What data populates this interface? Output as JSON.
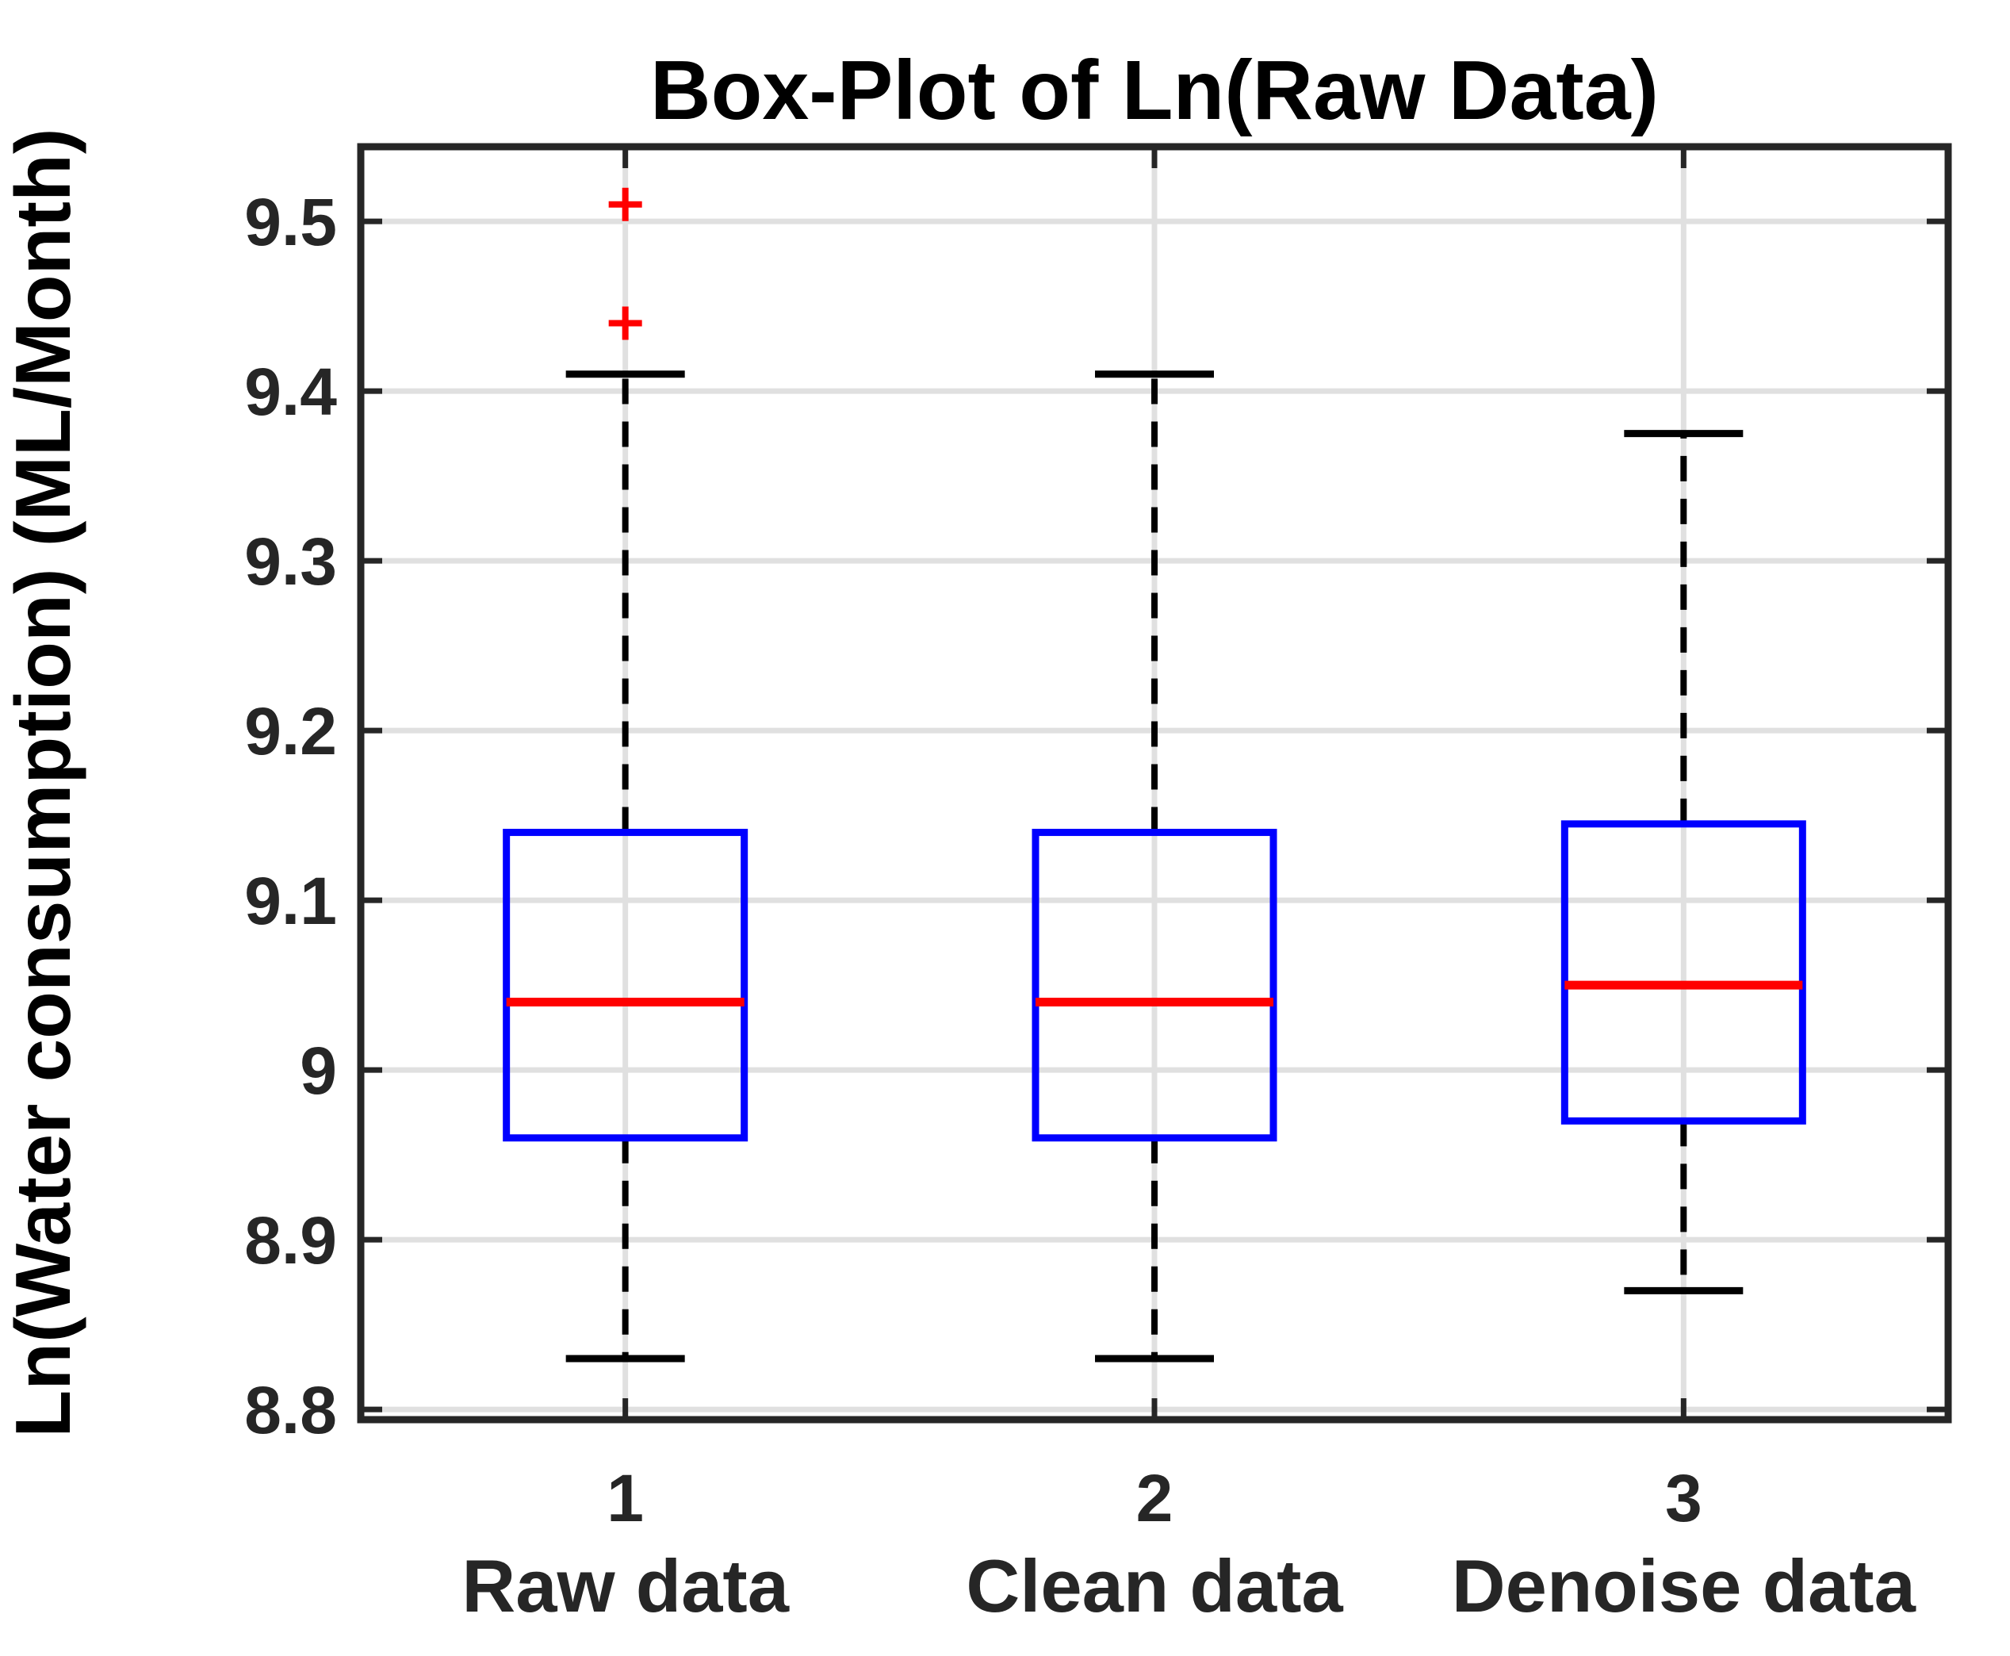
{
  "chart_data": {
    "type": "boxplot",
    "title": "Box-Plot of Ln(Raw Data)",
    "xlabel": "",
    "ylabel": "Ln(Water consumption) (ML/Month)",
    "ylim": [
      8.794,
      9.544
    ],
    "grid": true,
    "legend": "none",
    "y_tick_labels": [
      "8.8",
      "8.9",
      "9",
      "9.1",
      "9.2",
      "9.3",
      "9.4",
      "9.5"
    ],
    "x_tick_labels": [
      "1",
      "2",
      "3"
    ],
    "categories": [
      "Raw data",
      "Clean data",
      "Denoise data"
    ],
    "series": [
      {
        "name": "Raw data",
        "x_tick": "1",
        "whisker_low": 8.83,
        "q1": 8.96,
        "median": 9.04,
        "q3": 9.14,
        "whisker_high": 9.41,
        "outliers": [
          9.44,
          9.51
        ]
      },
      {
        "name": "Clean data",
        "x_tick": "2",
        "whisker_low": 8.83,
        "q1": 8.96,
        "median": 9.04,
        "q3": 9.14,
        "whisker_high": 9.41,
        "outliers": []
      },
      {
        "name": "Denoise data",
        "x_tick": "3",
        "whisker_low": 8.87,
        "q1": 8.97,
        "median": 9.05,
        "q3": 9.145,
        "whisker_high": 9.375,
        "outliers": []
      }
    ],
    "colors": {
      "box": "#0000ff",
      "median": "#ff0000",
      "whisker": "#000000",
      "outlier": "#ff0000",
      "grid": "#e0e0e0",
      "axis": "#262626",
      "tick_text": "#262626",
      "title_text": "#000000",
      "background": "#ffffff"
    }
  }
}
